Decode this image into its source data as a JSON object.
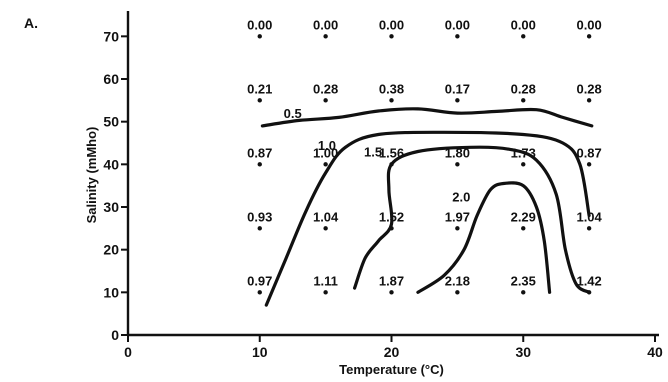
{
  "chart_data": {
    "type": "scatter",
    "panel_label": "A.",
    "title": "",
    "xlabel": "Temperature (°C)",
    "ylabel": "Salinity (mMho)",
    "xlim": [
      0,
      40
    ],
    "ylim": [
      0,
      75
    ],
    "x_ticks": [
      0,
      10,
      20,
      30,
      40
    ],
    "y_ticks": [
      0,
      10,
      20,
      30,
      40,
      50,
      60,
      70
    ],
    "grid": false,
    "legend": "none",
    "points": [
      {
        "x": 10,
        "y": 70,
        "label": "0.00"
      },
      {
        "x": 15,
        "y": 70,
        "label": "0.00"
      },
      {
        "x": 20,
        "y": 70,
        "label": "0.00"
      },
      {
        "x": 25,
        "y": 70,
        "label": "0.00"
      },
      {
        "x": 30,
        "y": 70,
        "label": "0.00"
      },
      {
        "x": 35,
        "y": 70,
        "label": "0.00"
      },
      {
        "x": 10,
        "y": 55,
        "label": "0.21"
      },
      {
        "x": 15,
        "y": 55,
        "label": "0.28"
      },
      {
        "x": 20,
        "y": 55,
        "label": "0.38"
      },
      {
        "x": 25,
        "y": 55,
        "label": "0.17"
      },
      {
        "x": 30,
        "y": 55,
        "label": "0.28"
      },
      {
        "x": 35,
        "y": 55,
        "label": "0.28"
      },
      {
        "x": 10,
        "y": 40,
        "label": "0.87"
      },
      {
        "x": 15,
        "y": 40,
        "label": "1.00"
      },
      {
        "x": 20,
        "y": 40,
        "label": "1.56"
      },
      {
        "x": 25,
        "y": 40,
        "label": "1.80"
      },
      {
        "x": 30,
        "y": 40,
        "label": "1.73"
      },
      {
        "x": 35,
        "y": 40,
        "label": "0.87"
      },
      {
        "x": 10,
        "y": 25,
        "label": "0.93"
      },
      {
        "x": 15,
        "y": 25,
        "label": "1.04"
      },
      {
        "x": 20,
        "y": 25,
        "label": "1.52"
      },
      {
        "x": 25,
        "y": 25,
        "label": "1.97"
      },
      {
        "x": 30,
        "y": 25,
        "label": "2.29"
      },
      {
        "x": 35,
        "y": 25,
        "label": "1.04"
      },
      {
        "x": 10,
        "y": 10,
        "label": "0.97"
      },
      {
        "x": 15,
        "y": 10,
        "label": "1.11"
      },
      {
        "x": 20,
        "y": 10,
        "label": "1.87"
      },
      {
        "x": 25,
        "y": 10,
        "label": "2.18"
      },
      {
        "x": 30,
        "y": 10,
        "label": "2.35"
      },
      {
        "x": 35,
        "y": 10,
        "label": "1.42"
      }
    ],
    "contours": [
      {
        "level": "0.5",
        "label_at": [
          12.5,
          52
        ],
        "path": [
          [
            10.2,
            49
          ],
          [
            13,
            50.3
          ],
          [
            16,
            51
          ],
          [
            19,
            52.5
          ],
          [
            22,
            53
          ],
          [
            25,
            52
          ],
          [
            28,
            52.4
          ],
          [
            31,
            52.8
          ],
          [
            33,
            51
          ],
          [
            35.2,
            49
          ]
        ]
      },
      {
        "level": "1.0",
        "label_at": [
          15.1,
          44.5
        ],
        "path": [
          [
            10.5,
            7
          ],
          [
            12,
            18
          ],
          [
            13.5,
            29
          ],
          [
            15,
            38
          ],
          [
            16.5,
            44
          ],
          [
            19,
            47
          ],
          [
            24,
            47.5
          ],
          [
            30,
            47
          ],
          [
            33,
            45
          ],
          [
            34.3,
            40
          ],
          [
            35,
            28
          ]
        ]
      },
      {
        "level": "1.5",
        "label_at": [
          18.6,
          43
        ],
        "path": [
          [
            17.2,
            11
          ],
          [
            18,
            18
          ],
          [
            19,
            22
          ],
          [
            20,
            26
          ],
          [
            19.8,
            34
          ],
          [
            20,
            40
          ],
          [
            22,
            43
          ],
          [
            26,
            44
          ],
          [
            29,
            43.5
          ],
          [
            31,
            41
          ],
          [
            32.5,
            33
          ],
          [
            33.2,
            20
          ],
          [
            34,
            12
          ],
          [
            35,
            10
          ]
        ]
      },
      {
        "level": "2.0",
        "label_at": [
          25.3,
          32.5
        ],
        "path": [
          [
            22,
            10
          ],
          [
            24,
            14
          ],
          [
            25.5,
            20
          ],
          [
            26.5,
            28
          ],
          [
            27.5,
            34
          ],
          [
            28.5,
            35.5
          ],
          [
            30,
            35
          ],
          [
            31,
            30
          ],
          [
            31.6,
            22
          ],
          [
            32,
            10
          ]
        ]
      }
    ]
  }
}
